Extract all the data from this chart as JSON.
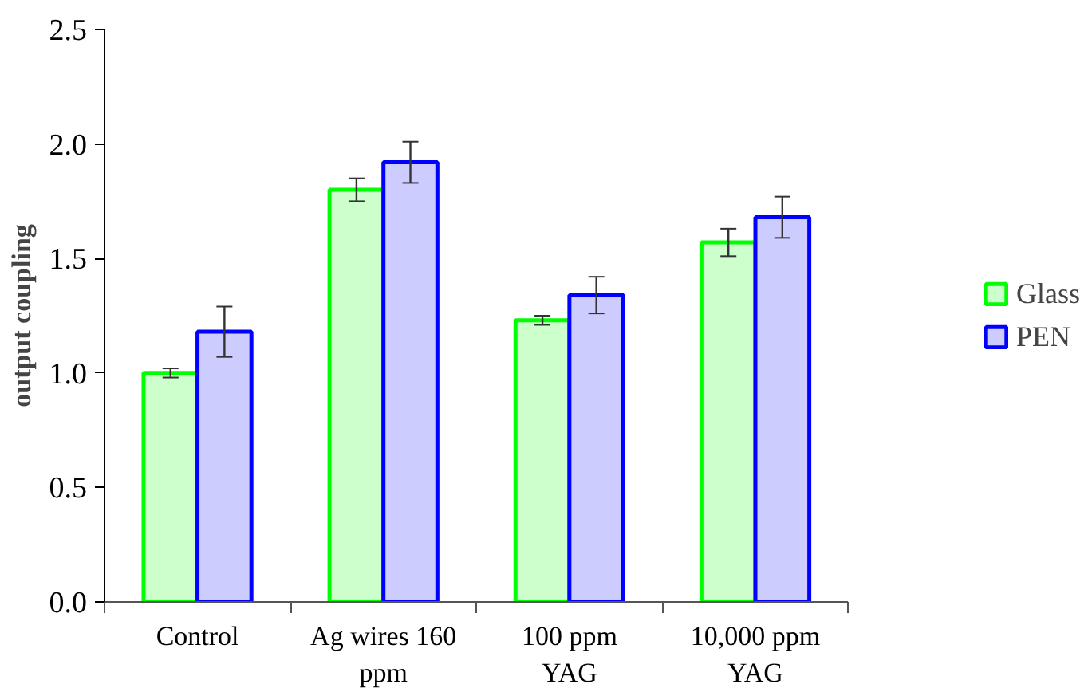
{
  "chart_data": {
    "type": "bar",
    "ylabel": "output coupling",
    "categories": [
      "Control",
      "Ag wires 160\nppm",
      "100 ppm\nYAG",
      "10,000 ppm\nYAG"
    ],
    "series": [
      {
        "name": "Glass",
        "color": "#00ff00",
        "values": [
          1.0,
          1.8,
          1.23,
          1.57
        ],
        "errors": [
          0.02,
          0.05,
          0.02,
          0.06
        ]
      },
      {
        "name": "PEN",
        "color": "#0000ff",
        "values": [
          1.18,
          1.92,
          1.34,
          1.68
        ],
        "errors": [
          0.11,
          0.09,
          0.08,
          0.09
        ]
      }
    ],
    "ylim": [
      0,
      2.5
    ],
    "yticks": [
      {
        "value": 0,
        "label": "0.0"
      },
      {
        "value": 0.5,
        "label": "0.5"
      },
      {
        "value": 1,
        "label": "1.0"
      },
      {
        "value": 1.5,
        "label": "1.5"
      },
      {
        "value": 2,
        "label": "2.0"
      },
      {
        "value": 2.5,
        "label": "2.5"
      }
    ],
    "grid": false,
    "legend": "right"
  }
}
